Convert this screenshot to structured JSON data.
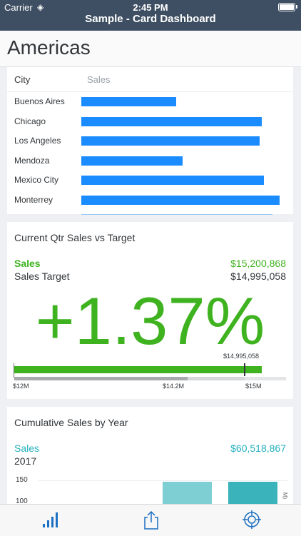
{
  "status_bar": {
    "carrier": "Carrier",
    "time": "2:45 PM"
  },
  "nav": {
    "title": "Sample - Card Dashboard"
  },
  "page": {
    "title": "Americas"
  },
  "city_card": {
    "col_city": "City",
    "col_sales": "Sales",
    "rows": [
      {
        "city": "Buenos Aires",
        "share": 0.48
      },
      {
        "city": "Chicago",
        "share": 0.91
      },
      {
        "city": "Los Angeles",
        "share": 0.9
      },
      {
        "city": "Mendoza",
        "share": 0.51
      },
      {
        "city": "Mexico City",
        "share": 0.92
      },
      {
        "city": "Monterrey",
        "share": 1.0
      }
    ],
    "bar_color": "#1a8cff"
  },
  "target_card": {
    "title": "Current Qtr Sales vs Target",
    "sales_label": "Sales",
    "sales_value": "$15,200,868",
    "target_label": "Sales Target",
    "target_value": "$14,995,058",
    "delta": "+1.37%",
    "marker_label": "$14,995,058",
    "ticks": [
      "$12M",
      "$14.2M",
      "$15M"
    ],
    "accent_color": "#3fb31f"
  },
  "cumulative_card": {
    "title": "Cumulative Sales by Year",
    "sales_label": "Sales",
    "sales_value": "$60,518,867",
    "year": "2017",
    "y_ticks": [
      "150",
      "100"
    ],
    "side_label": "M)",
    "colors": [
      "#7dcfd3",
      "#3bb3bb"
    ]
  },
  "tabs": [
    {
      "name": "analytics-icon",
      "color": "#1a6fc2"
    },
    {
      "name": "share-icon",
      "color": "#1a6fc2"
    },
    {
      "name": "target-icon",
      "color": "#1a6fc2"
    }
  ]
}
